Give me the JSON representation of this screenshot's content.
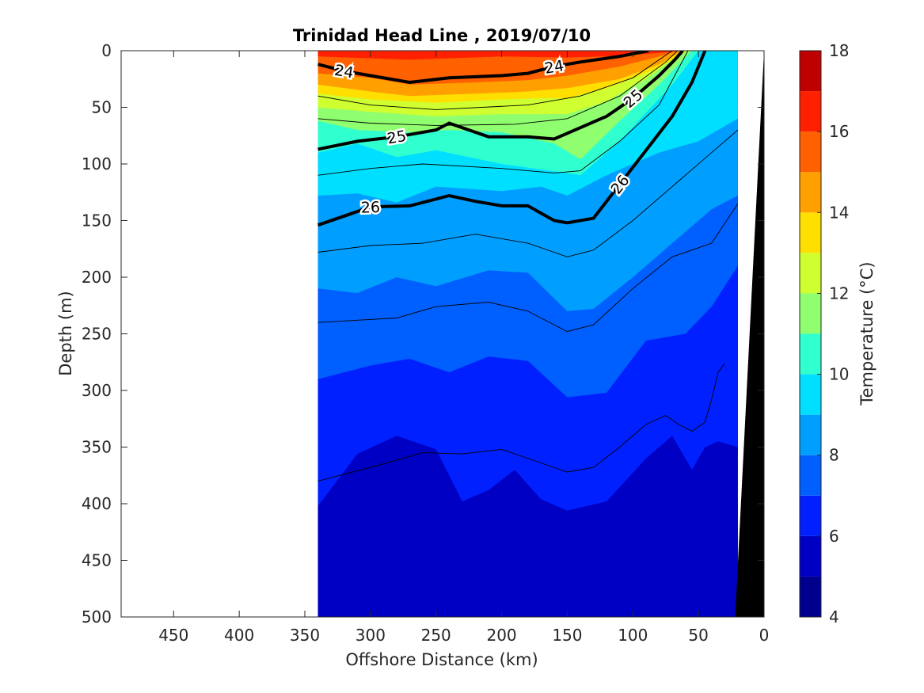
{
  "chart_data": {
    "type": "heatmap",
    "title": "Trinidad Head Line , 2019/07/10",
    "xlabel": "Offshore Distance (km)",
    "ylabel": "Depth (m)",
    "colorbar_label": "Temperature (°C)",
    "xlim": [
      490,
      0
    ],
    "ylim": [
      0,
      500
    ],
    "x_ticks": [
      450,
      400,
      350,
      300,
      250,
      200,
      150,
      100,
      50,
      0
    ],
    "y_ticks": [
      0,
      50,
      100,
      150,
      200,
      250,
      300,
      350,
      400,
      450,
      500
    ],
    "colorbar": {
      "range": [
        4,
        18
      ],
      "ticks": [
        4,
        6,
        8,
        10,
        12,
        14,
        16,
        18
      ],
      "levels": [
        {
          "from": 4,
          "to": 5,
          "color": "#00008f"
        },
        {
          "from": 5,
          "to": 6,
          "color": "#0000c4"
        },
        {
          "from": 6,
          "to": 7,
          "color": "#0020ff"
        },
        {
          "from": 7,
          "to": 8,
          "color": "#005fff"
        },
        {
          "from": 8,
          "to": 9,
          "color": "#009fff"
        },
        {
          "from": 9,
          "to": 10,
          "color": "#00dfff"
        },
        {
          "from": 10,
          "to": 11,
          "color": "#30ffcf"
        },
        {
          "from": 11,
          "to": 12,
          "color": "#8fff6f"
        },
        {
          "from": 12,
          "to": 13,
          "color": "#cfff30"
        },
        {
          "from": 13,
          "to": 14,
          "color": "#ffdf00"
        },
        {
          "from": 14,
          "to": 15,
          "color": "#ff9f00"
        },
        {
          "from": 15,
          "to": 16,
          "color": "#ff6000"
        },
        {
          "from": 16,
          "to": 17,
          "color": "#ff2000"
        },
        {
          "from": 17,
          "to": 18,
          "color": "#bf0000"
        }
      ]
    },
    "section_x_range": [
      340,
      20
    ],
    "temperature_isotherms": [
      {
        "temp": 17,
        "points": [
          [
            340,
            0
          ],
          [
            20,
            0
          ]
        ]
      },
      {
        "temp": 16,
        "points": [
          [
            340,
            5
          ],
          [
            270,
            8
          ],
          [
            200,
            5
          ],
          [
            150,
            6
          ],
          [
            120,
            5
          ],
          [
            80,
            2
          ],
          [
            60,
            0
          ]
        ]
      },
      {
        "temp": 15,
        "points": [
          [
            340,
            20
          ],
          [
            300,
            24
          ],
          [
            270,
            30
          ],
          [
            220,
            28
          ],
          [
            180,
            26
          ],
          [
            150,
            22
          ],
          [
            110,
            14
          ],
          [
            80,
            5
          ],
          [
            65,
            0
          ]
        ]
      },
      {
        "temp": 14,
        "points": [
          [
            340,
            30
          ],
          [
            300,
            36
          ],
          [
            270,
            40
          ],
          [
            220,
            38
          ],
          [
            180,
            36
          ],
          [
            150,
            33
          ],
          [
            110,
            25
          ],
          [
            80,
            12
          ],
          [
            62,
            0
          ]
        ]
      },
      {
        "temp": 13,
        "points": [
          [
            340,
            38
          ],
          [
            300,
            43
          ],
          [
            250,
            46
          ],
          [
            200,
            43
          ],
          [
            170,
            42
          ],
          [
            150,
            42
          ],
          [
            120,
            33
          ],
          [
            80,
            15
          ],
          [
            60,
            0
          ]
        ]
      },
      {
        "temp": 12,
        "points": [
          [
            340,
            50
          ],
          [
            300,
            54
          ],
          [
            250,
            58
          ],
          [
            200,
            56
          ],
          [
            170,
            56
          ],
          [
            150,
            56
          ],
          [
            120,
            45
          ],
          [
            90,
            25
          ],
          [
            70,
            8
          ],
          [
            58,
            0
          ]
        ]
      },
      {
        "temp": 11,
        "points": [
          [
            340,
            62
          ],
          [
            310,
            70
          ],
          [
            270,
            72
          ],
          [
            240,
            70
          ],
          [
            200,
            72
          ],
          [
            160,
            82
          ],
          [
            140,
            96
          ],
          [
            110,
            62
          ],
          [
            80,
            30
          ],
          [
            55,
            0
          ]
        ]
      },
      {
        "temp": 10,
        "points": [
          [
            340,
            90
          ],
          [
            310,
            82
          ],
          [
            280,
            94
          ],
          [
            250,
            88
          ],
          [
            200,
            100
          ],
          [
            150,
            108
          ],
          [
            140,
            110
          ],
          [
            110,
            80
          ],
          [
            70,
            30
          ],
          [
            50,
            0
          ]
        ]
      },
      {
        "temp": 9,
        "points": [
          [
            340,
            128
          ],
          [
            310,
            126
          ],
          [
            280,
            134
          ],
          [
            250,
            120
          ],
          [
            200,
            124
          ],
          [
            170,
            120
          ],
          [
            150,
            128
          ],
          [
            120,
            110
          ],
          [
            80,
            90
          ],
          [
            50,
            80
          ],
          [
            20,
            60
          ]
        ]
      },
      {
        "temp": 8,
        "points": [
          [
            340,
            210
          ],
          [
            310,
            214
          ],
          [
            280,
            200
          ],
          [
            250,
            208
          ],
          [
            210,
            194
          ],
          [
            180,
            196
          ],
          [
            150,
            230
          ],
          [
            130,
            228
          ],
          [
            100,
            200
          ],
          [
            70,
            170
          ],
          [
            40,
            140
          ],
          [
            20,
            128
          ]
        ]
      },
      {
        "temp": 7,
        "points": [
          [
            340,
            290
          ],
          [
            300,
            278
          ],
          [
            270,
            272
          ],
          [
            240,
            284
          ],
          [
            210,
            270
          ],
          [
            180,
            274
          ],
          [
            150,
            306
          ],
          [
            120,
            302
          ],
          [
            90,
            256
          ],
          [
            60,
            250
          ],
          [
            40,
            226
          ],
          [
            20,
            190
          ]
        ]
      },
      {
        "temp": 6,
        "points": [
          [
            340,
            402
          ],
          [
            310,
            356
          ],
          [
            280,
            340
          ],
          [
            250,
            352
          ],
          [
            230,
            398
          ],
          [
            210,
            388
          ],
          [
            190,
            370
          ],
          [
            170,
            396
          ],
          [
            150,
            406
          ],
          [
            120,
            398
          ],
          [
            90,
            360
          ],
          [
            70,
            340
          ],
          [
            55,
            370
          ],
          [
            45,
            350
          ],
          [
            35,
            345
          ],
          [
            20,
            350
          ]
        ]
      },
      {
        "temp": 5,
        "points": [
          [
            340,
            500
          ],
          [
            20,
            500
          ]
        ]
      }
    ],
    "density_contours": [
      {
        "label": "24",
        "points": [
          [
            340,
            12
          ],
          [
            320,
            18
          ],
          [
            300,
            22
          ],
          [
            270,
            28
          ],
          [
            240,
            24
          ],
          [
            200,
            22
          ],
          [
            180,
            20
          ],
          [
            160,
            14
          ],
          [
            140,
            10
          ],
          [
            110,
            5
          ],
          [
            88,
            0
          ]
        ]
      },
      {
        "label": "25",
        "points": [
          [
            340,
            87
          ],
          [
            310,
            80
          ],
          [
            280,
            76
          ],
          [
            250,
            70
          ],
          [
            240,
            64
          ],
          [
            210,
            76
          ],
          [
            180,
            76
          ],
          [
            160,
            78
          ],
          [
            140,
            68
          ],
          [
            120,
            58
          ],
          [
            100,
            42
          ],
          [
            80,
            22
          ],
          [
            68,
            8
          ],
          [
            62,
            0
          ]
        ]
      },
      {
        "label": "26",
        "points": [
          [
            340,
            154
          ],
          [
            320,
            146
          ],
          [
            300,
            138
          ],
          [
            270,
            137
          ],
          [
            240,
            128
          ],
          [
            220,
            133
          ],
          [
            200,
            137
          ],
          [
            180,
            137
          ],
          [
            160,
            150
          ],
          [
            150,
            152
          ],
          [
            130,
            148
          ],
          [
            110,
            118
          ],
          [
            90,
            88
          ],
          [
            70,
            58
          ],
          [
            55,
            28
          ],
          [
            45,
            0
          ]
        ]
      }
    ],
    "thin_contours": [
      [
        [
          340,
          40
        ],
        [
          300,
          48
        ],
        [
          250,
          52
        ],
        [
          180,
          48
        ],
        [
          140,
          40
        ],
        [
          100,
          24
        ],
        [
          70,
          0
        ]
      ],
      [
        [
          340,
          60
        ],
        [
          300,
          64
        ],
        [
          250,
          66
        ],
        [
          190,
          65
        ],
        [
          150,
          60
        ],
        [
          110,
          40
        ],
        [
          75,
          10
        ],
        [
          66,
          0
        ]
      ],
      [
        [
          340,
          110
        ],
        [
          300,
          104
        ],
        [
          260,
          100
        ],
        [
          200,
          104
        ],
        [
          160,
          108
        ],
        [
          140,
          106
        ],
        [
          110,
          80
        ],
        [
          80,
          48
        ],
        [
          58,
          0
        ]
      ],
      [
        [
          340,
          178
        ],
        [
          300,
          172
        ],
        [
          260,
          170
        ],
        [
          220,
          162
        ],
        [
          180,
          170
        ],
        [
          150,
          182
        ],
        [
          130,
          176
        ],
        [
          100,
          150
        ],
        [
          70,
          120
        ],
        [
          40,
          90
        ],
        [
          20,
          70
        ]
      ],
      [
        [
          340,
          240
        ],
        [
          310,
          238
        ],
        [
          280,
          236
        ],
        [
          250,
          226
        ],
        [
          210,
          222
        ],
        [
          180,
          230
        ],
        [
          150,
          248
        ],
        [
          130,
          242
        ],
        [
          100,
          210
        ],
        [
          70,
          182
        ],
        [
          40,
          170
        ],
        [
          20,
          135
        ]
      ],
      [
        [
          340,
          380
        ],
        [
          300,
          368
        ],
        [
          260,
          355
        ],
        [
          230,
          356
        ],
        [
          200,
          352
        ],
        [
          170,
          364
        ],
        [
          150,
          372
        ],
        [
          130,
          368
        ],
        [
          110,
          350
        ],
        [
          90,
          330
        ],
        [
          75,
          322
        ],
        [
          65,
          330
        ],
        [
          55,
          336
        ],
        [
          45,
          328
        ],
        [
          40,
          308
        ],
        [
          35,
          284
        ],
        [
          30,
          276
        ]
      ]
    ],
    "bathymetry_label": "",
    "seafloor_polygon": [
      [
        0,
        0
      ],
      [
        22,
        500
      ],
      [
        0,
        500
      ]
    ]
  }
}
